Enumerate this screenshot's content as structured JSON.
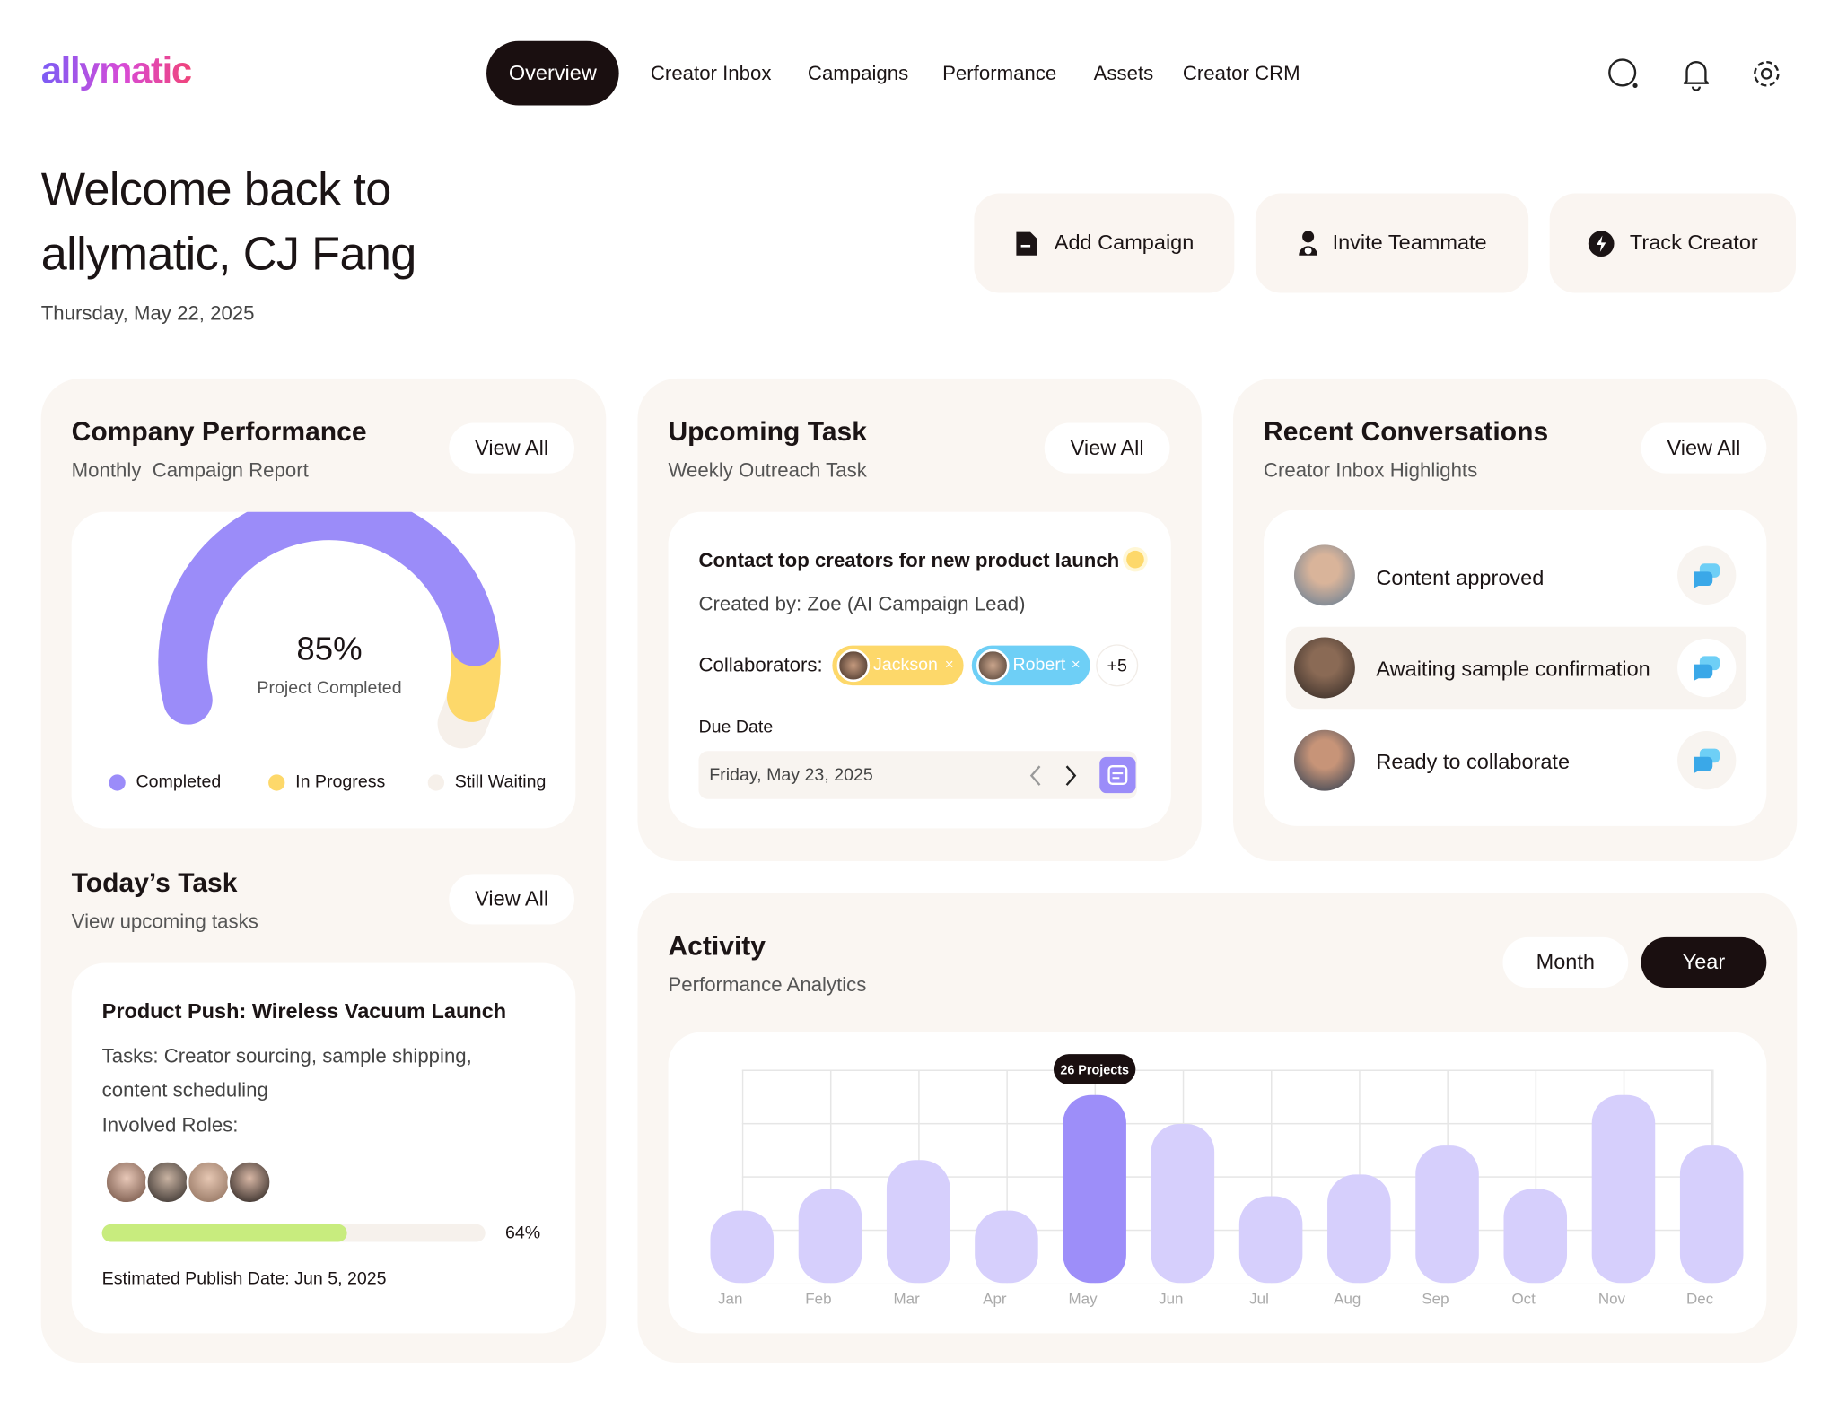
{
  "header": {
    "logo": "allymatic",
    "nav": [
      "Overview",
      "Creator Inbox",
      "Campaigns",
      "Performance",
      "Assets",
      "Creator CRM"
    ]
  },
  "welcome": {
    "title_line1": "Welcome back to",
    "title_line2": "allymatic, CJ Fang",
    "date": "Thursday, May 22, 2025"
  },
  "actions": [
    "Add Campaign",
    "Invite Teammate",
    "Track Creator"
  ],
  "company_performance": {
    "title": "Company Performance",
    "subtitle": "Monthly  Campaign Report",
    "view_all": "View All",
    "gauge": {
      "value": 85,
      "value_label": "85%",
      "caption": "Project Completed"
    },
    "legend": [
      "Completed",
      "In Progress",
      "Still Waiting"
    ]
  },
  "todays_task": {
    "title": "Today’s Task",
    "subtitle": "View upcoming tasks",
    "view_all": "View All",
    "card": {
      "title": "Product Push: Wireless Vacuum Launch",
      "tasks_line1": "Tasks: Creator sourcing, sample shipping,",
      "tasks_line2": "content scheduling",
      "roles": "Involved Roles:",
      "progress": 64,
      "progress_label": "64%",
      "publish": "Estimated Publish Date: Jun 5, 2025"
    }
  },
  "upcoming_task": {
    "title": "Upcoming Task",
    "subtitle": "Weekly Outreach Task",
    "view_all": "View All",
    "card": {
      "title": "Contact top creators for new product launch",
      "created_by": "Created by: Zoe (AI Campaign Lead)",
      "collaborators_label": "Collaborators:",
      "collaborators": [
        "Jackson",
        "Robert"
      ],
      "more": "+5",
      "due_label": "Due Date",
      "due_date": "Friday, May 23, 2025"
    }
  },
  "recent_conversations": {
    "title": "Recent Conversations",
    "subtitle": "Creator Inbox Highlights",
    "view_all": "View All",
    "items": [
      "Content approved",
      "Awaiting sample confirmation",
      "Ready to collaborate"
    ]
  },
  "activity": {
    "title": "Activity",
    "subtitle": "Performance Analytics",
    "toggle": [
      "Month",
      "Year"
    ],
    "chart_data": {
      "type": "bar",
      "categories": [
        "Jan",
        "Feb",
        "Mar",
        "Apr",
        "May",
        "Jun",
        "Jul",
        "Aug",
        "Sep",
        "Oct",
        "Nov",
        "Dec"
      ],
      "values": [
        10,
        13,
        17,
        10,
        26,
        22,
        12,
        15,
        19,
        13,
        26,
        19
      ],
      "value_labels": [
        null,
        null,
        null,
        null,
        "26 Projects",
        null,
        null,
        null,
        null,
        null,
        null,
        null
      ],
      "colors": [
        "#d6cffc",
        "#d6cffc",
        "#d6cffc",
        "#d6cffc",
        "#9d8ef9",
        "#d6cffc",
        "#d6cffc",
        "#d6cffc",
        "#d6cffc",
        "#d6cffc",
        "#d6cffc",
        "#d6cffc"
      ],
      "ylim": [
        0,
        30
      ]
    }
  }
}
